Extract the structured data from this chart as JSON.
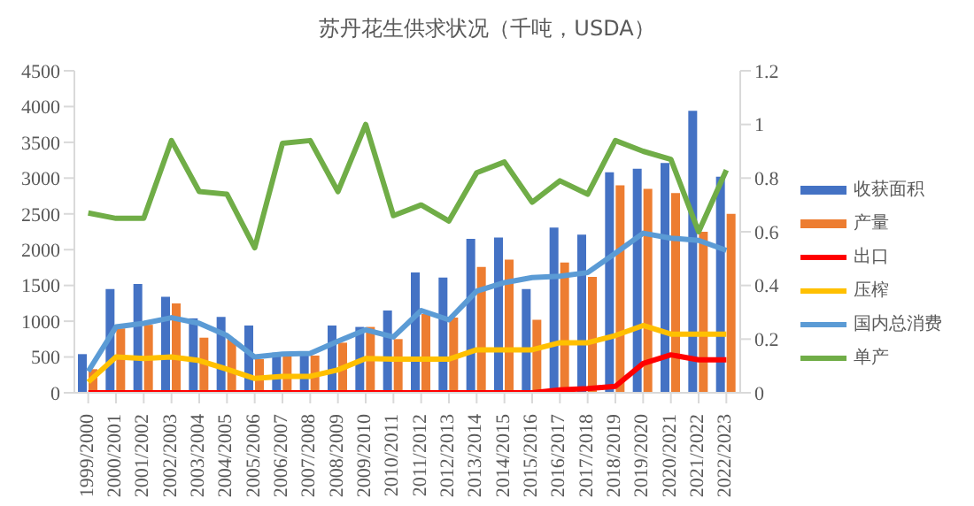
{
  "chart_data": {
    "type": "bar",
    "title": "苏丹花生供求状况（千吨，USDA）",
    "categories": [
      "1999/2000",
      "2000/2001",
      "2001/2002",
      "2002/2003",
      "2003/2004",
      "2004/2005",
      "2005/2006",
      "2006/2007",
      "2007/2008",
      "2008/2009",
      "2009/2010",
      "2010/2011",
      "2011/2012",
      "2012/2013",
      "2013/2014",
      "2014/2015",
      "2015/2016",
      "2016/2017",
      "2017/2018",
      "2018/2019",
      "2019/2020",
      "2020/2021",
      "2021/2022",
      "2022/2023"
    ],
    "series": [
      {
        "name": "收获面积",
        "color": "#4472c4",
        "values": [
          540,
          1450,
          1520,
          1340,
          1040,
          1060,
          940,
          560,
          560,
          940,
          920,
          1150,
          1680,
          1610,
          2150,
          2170,
          1450,
          2310,
          2210,
          3080,
          3130,
          3210,
          3940,
          3020
        ]
      },
      {
        "name": "产量",
        "color": "#ed7d31",
        "values": [
          330,
          900,
          950,
          1250,
          770,
          750,
          470,
          520,
          520,
          700,
          920,
          750,
          1100,
          1050,
          1760,
          1860,
          1020,
          1820,
          1620,
          2900,
          2850,
          2790,
          2250,
          2500
        ]
      },
      {
        "name": "出口",
        "type": "line",
        "color": "#ff0000",
        "values": [
          0,
          0,
          0,
          0,
          0,
          0,
          0,
          0,
          0,
          0,
          0,
          0,
          0,
          0,
          0,
          0,
          0,
          40,
          60,
          90,
          410,
          530,
          460,
          460
        ]
      },
      {
        "name": "压榨",
        "type": "line",
        "color": "#ffc000",
        "values": [
          150,
          500,
          480,
          500,
          450,
          330,
          200,
          230,
          230,
          320,
          480,
          470,
          470,
          470,
          600,
          600,
          600,
          700,
          700,
          800,
          940,
          820,
          820,
          820
        ]
      },
      {
        "name": "国内总消费",
        "type": "line",
        "color": "#5b9bd5",
        "values": [
          300,
          920,
          970,
          1050,
          970,
          800,
          500,
          540,
          550,
          720,
          880,
          780,
          1150,
          1020,
          1420,
          1540,
          1610,
          1630,
          1680,
          1950,
          2230,
          2160,
          2130,
          1990
        ]
      },
      {
        "name": "单产",
        "type": "line",
        "axis": "y2",
        "color": "#70ad47",
        "values": [
          0.67,
          0.65,
          0.65,
          0.94,
          0.75,
          0.74,
          0.54,
          0.93,
          0.94,
          0.75,
          1.0,
          0.66,
          0.7,
          0.64,
          0.82,
          0.86,
          0.71,
          0.79,
          0.74,
          0.94,
          0.9,
          0.87,
          0.6,
          0.83
        ]
      }
    ],
    "ylim": [
      0,
      4500
    ],
    "yticks": [
      0,
      500,
      1000,
      1500,
      2000,
      2500,
      3000,
      3500,
      4000,
      4500
    ],
    "y2lim": [
      0,
      1.2
    ],
    "y2ticks": [
      0,
      0.2,
      0.4,
      0.6,
      0.8,
      1,
      1.2
    ],
    "grid": false,
    "legend": "right"
  }
}
